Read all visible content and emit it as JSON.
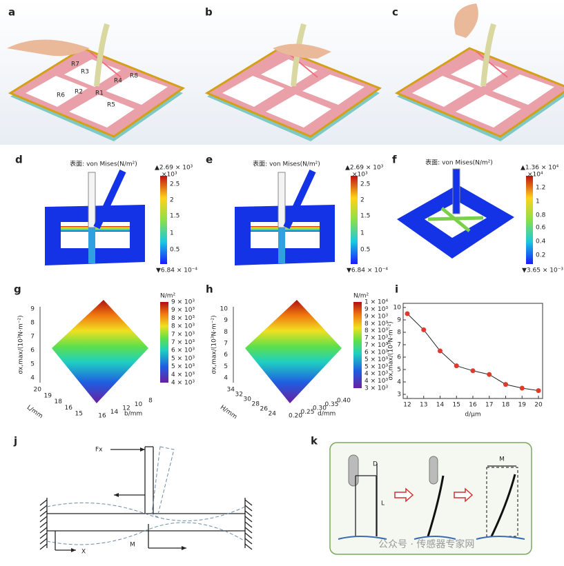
{
  "figure": {
    "letters": [
      "a",
      "b",
      "c",
      "d",
      "e",
      "f",
      "g",
      "h",
      "i",
      "j",
      "k"
    ],
    "a_labels": [
      "R7",
      "R3",
      "R8",
      "R4",
      "R6",
      "R2",
      "R1",
      "R5"
    ],
    "sim_title": [
      "表面: von Mises(N/m²)",
      "表面: von Mises(N/m²)",
      "表面: von Mises(N/m²)"
    ],
    "d_bar": {
      "max": "▲2.69 × 10³",
      "unit": "×10³",
      "ticks": [
        "2.5",
        "2",
        "1.5",
        "1",
        "0.5"
      ],
      "min": "▼6.84 × 10⁻⁴"
    },
    "e_bar": {
      "max": "▲2.69 × 10³",
      "unit": "×10³",
      "ticks": [
        "2.5",
        "2",
        "1.5",
        "1",
        "0.5"
      ],
      "min": "▼6.84 × 10⁻⁴"
    },
    "f_bar": {
      "max": "▲1.36 × 10⁴",
      "unit": "×10⁴",
      "ticks": [
        "1.2",
        "1",
        "0.8",
        "0.6",
        "0.4",
        "0.2"
      ],
      "min": "▼3.65 × 10⁻³"
    },
    "g": {
      "unit": "N/m²",
      "bar": [
        "9 × 10³",
        "9 × 10³",
        "8 × 10³",
        "8 × 10³",
        "7 × 10³",
        "7 × 10³",
        "6 × 10³",
        "5 × 10³",
        "5 × 10³",
        "4 × 10³",
        "4 × 10³"
      ],
      "ylabel": "σx,max/(10³N·m⁻²)",
      "yticks": [
        "9",
        "8",
        "7",
        "6",
        "5",
        "4"
      ],
      "xlabel": "L/mm",
      "xticks": [
        "20",
        "19",
        "18",
        "16",
        "15"
      ],
      "zlabel": "b/mm",
      "zticks": [
        "16",
        "14",
        "12",
        "10",
        "8"
      ]
    },
    "h": {
      "unit": "N/m²",
      "bar": [
        "1 × 10⁴",
        "9 × 10³",
        "9 × 10³",
        "8 × 10³",
        "8 × 10³",
        "7 × 10³",
        "7 × 10³",
        "6 × 10³",
        "5 × 10³",
        "5 × 10³",
        "4 × 10³",
        "4 × 10³",
        "3 × 10³"
      ],
      "ylabel": "σx,max/(10³N·m⁻²)",
      "yticks": [
        "10",
        "9",
        "8",
        "7",
        "6",
        "5",
        "4"
      ],
      "xlabel": "H/mm",
      "xticks": [
        "34",
        "32",
        "30",
        "28",
        "26",
        "24"
      ],
      "zlabel": "d/mm",
      "zticks": [
        "0.20",
        "0.25",
        "0.30",
        "0.35",
        "0.40"
      ]
    },
    "j": {
      "force": "Fx",
      "moment": "M",
      "axis": "X"
    },
    "k": {
      "d": "D",
      "l": "L",
      "m": "M"
    },
    "watermark": "公众号 · 传感器专家网"
  },
  "chart_data": {
    "type": "line",
    "ylabel": "σx,max/(10³N·m⁻²)",
    "xlabel": "d/μm",
    "x": [
      12,
      13,
      14,
      15,
      16,
      17,
      18,
      19,
      20
    ],
    "values": [
      9.5,
      8.2,
      6.5,
      5.3,
      4.9,
      4.6,
      3.8,
      3.5,
      3.3
    ],
    "color": "#e03a2a",
    "xlim": [
      12,
      20
    ],
    "ylim": [
      3,
      10
    ],
    "xticks": [
      12,
      13,
      14,
      15,
      16,
      17,
      18,
      19,
      20
    ],
    "yticks": [
      3,
      4,
      5,
      6,
      7,
      8,
      9,
      10
    ]
  }
}
